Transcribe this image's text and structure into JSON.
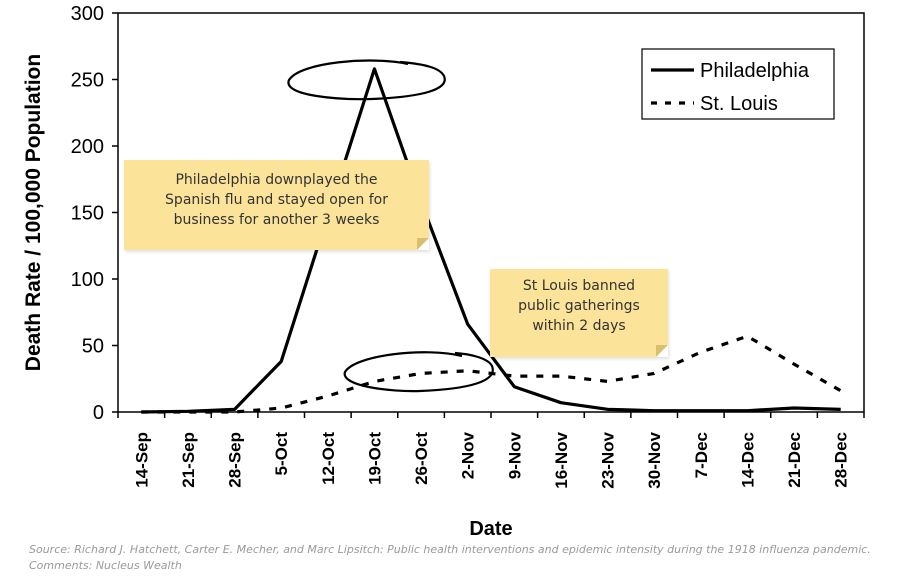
{
  "colors": {
    "line": "#000000",
    "note_fill": "#fbe39a",
    "note_text": "#333333",
    "source_text": "#9a9a9a"
  },
  "chart_data": {
    "type": "line",
    "xlabel": "Date",
    "ylabel": "Death Rate / 100,000 Population",
    "ylim": [
      0,
      300
    ],
    "yticks": [
      0,
      50,
      100,
      150,
      200,
      250,
      300
    ],
    "grid": false,
    "legend_position": "top-right",
    "categories": [
      "14-Sep",
      "21-Sep",
      "28-Sep",
      "5-Oct",
      "12-Oct",
      "19-Oct",
      "26-Oct",
      "2-Nov",
      "9-Nov",
      "16-Nov",
      "23-Nov",
      "30-Nov",
      "7-Dec",
      "14-Dec",
      "21-Dec",
      "28-Dec"
    ],
    "series": [
      {
        "name": "Philadelphia",
        "style": "solid",
        "values": [
          0,
          0.5,
          2,
          38,
          148,
          258,
          158,
          66,
          19,
          7,
          2,
          1,
          1,
          1,
          3,
          2
        ]
      },
      {
        "name": "St. Louis",
        "style": "dotted",
        "values": [
          0,
          0,
          0,
          3,
          12,
          23,
          29,
          31,
          27,
          27,
          23,
          29,
          45,
          57,
          36,
          16
        ]
      }
    ],
    "annotations": [
      {
        "text": "Philadelphia downplayed the Spanish flu and stayed open for business for another 3 weeks",
        "lines": [
          "Philadelphia downplayed the",
          "Spanish flu and stayed open for",
          "business for another 3 weeks"
        ]
      },
      {
        "text": "St Louis banned public gatherings within 2 days",
        "lines": [
          "St Louis banned",
          "public gatherings",
          "within 2 days"
        ]
      }
    ]
  },
  "footer": {
    "source": "Source: Richard J. Hatchett, Carter E. Mecher, and Marc Lipsitch: Public health interventions and epidemic intensity during the 1918 influenza pandemic.",
    "comments": "Comments: Nucleus Wealth"
  }
}
